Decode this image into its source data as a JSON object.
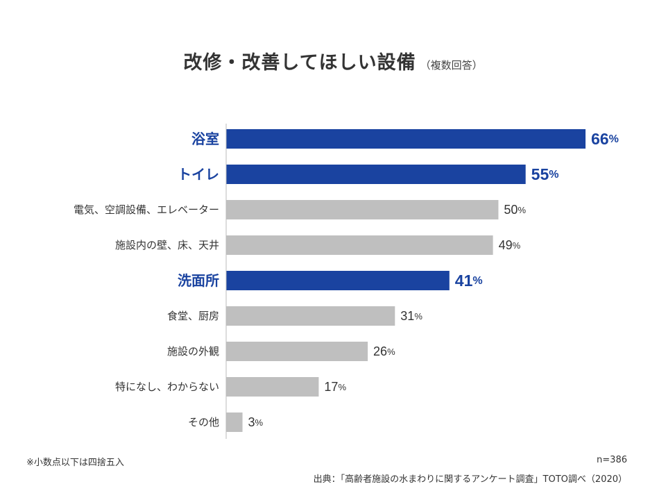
{
  "title": "改修・改善してほしい設備",
  "subtitle": "（複数回答）",
  "footnote": "※小数点以下は四捨五入",
  "sample_size": "n=386",
  "source": "出典：「高齢者施設の水まわりに関するアンケート調査」TOTO調べ（2020）",
  "colors": {
    "highlight": "#1a43a0",
    "normal": "#bfbfbf",
    "axis": "#bbbbbb",
    "normal_text": "#333333"
  },
  "chart_data": {
    "type": "bar",
    "orientation": "horizontal",
    "unit": "%",
    "xlim": [
      0,
      70
    ],
    "grid": false,
    "categories": [
      "浴室",
      "トイレ",
      "電気、空調設備、エレベーター",
      "施設内の壁、床、天井",
      "洗面所",
      "食堂、厨房",
      "施設の外観",
      "特になし、わからない",
      "その他"
    ],
    "values": [
      66,
      55,
      50,
      49,
      41,
      31,
      26,
      17,
      3
    ],
    "highlighted": [
      true,
      true,
      false,
      false,
      true,
      false,
      false,
      false,
      false
    ]
  }
}
